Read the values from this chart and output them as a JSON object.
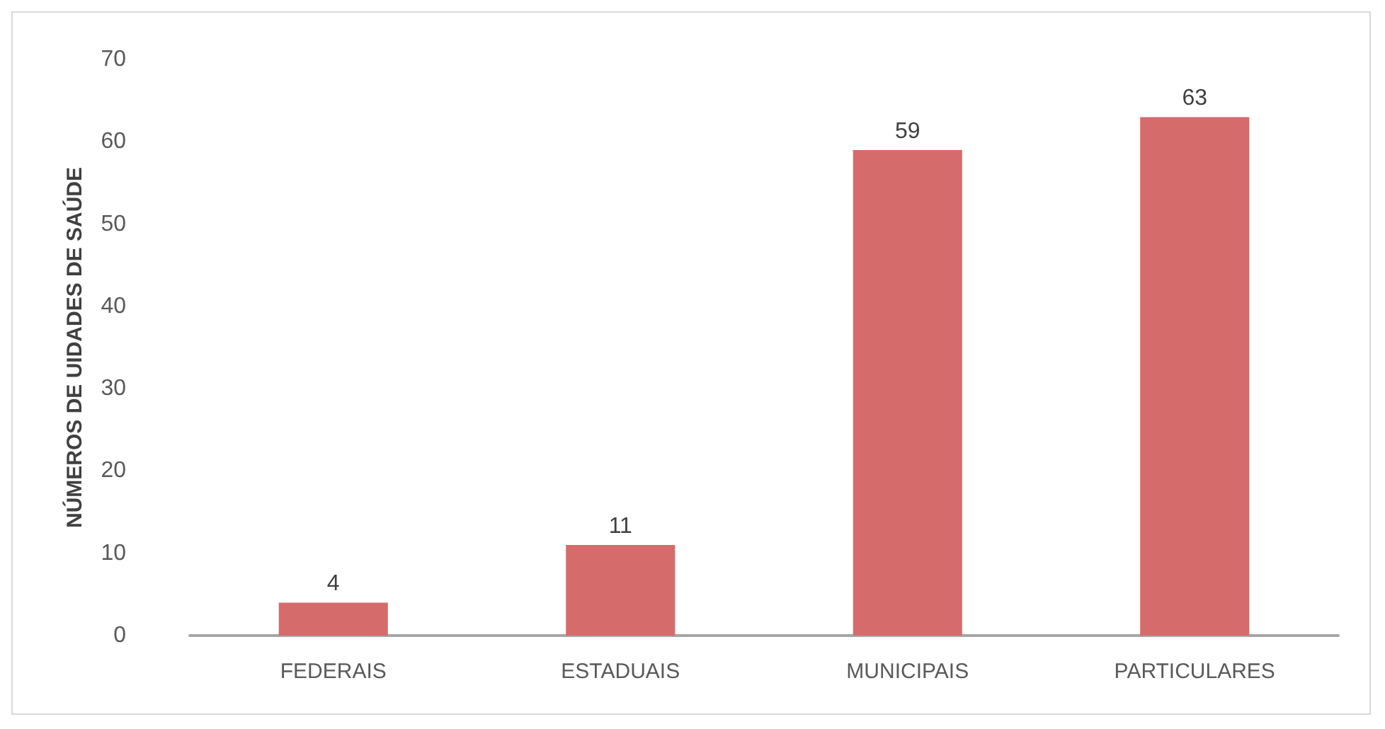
{
  "chart_data": {
    "type": "bar",
    "ylabel": "NÚMEROS DE UIDADES DE SAÚDE",
    "categories": [
      "FEDERAIS",
      "ESTADUAIS",
      "MUNICIPAIS",
      "PARTICULARES"
    ],
    "values": [
      4,
      11,
      59,
      63
    ],
    "color": "#d66b6b",
    "ylim": [
      0,
      70
    ],
    "yticks": [
      0,
      10,
      20,
      30,
      40,
      50,
      60,
      70
    ],
    "grid": false,
    "data_labels": true
  }
}
